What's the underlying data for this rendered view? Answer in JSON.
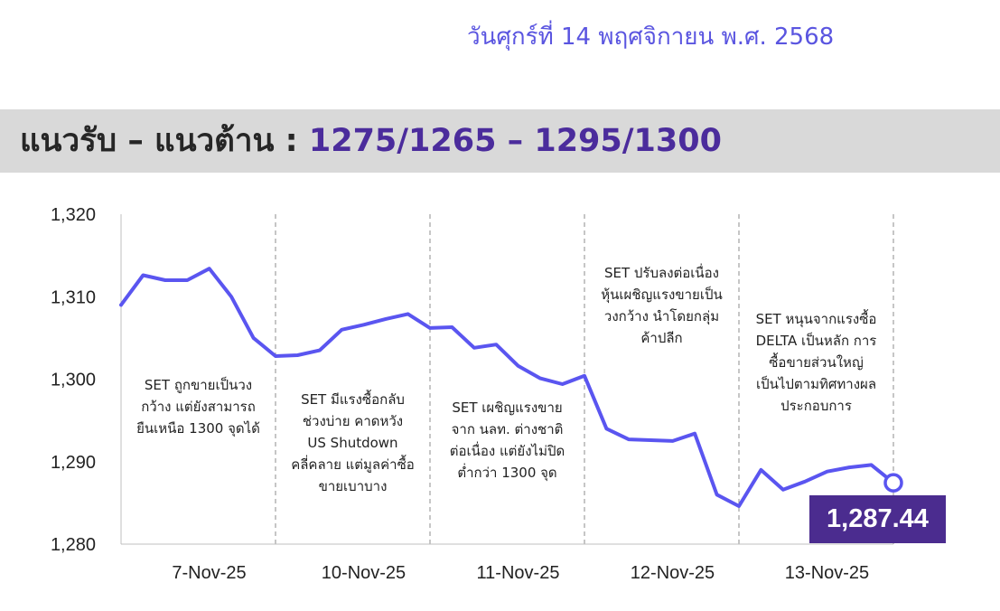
{
  "header": {
    "date": "วันศุกร์ที่ 14 พฤศจิกายน พ.ศ. 2568"
  },
  "banner": {
    "label": "แนวรับ – แนวต้าน",
    "separator": " : ",
    "levels": "1275/1265 – 1295/1300"
  },
  "last_value_label": "1,287.44",
  "colors": {
    "line": "#5a55f0",
    "banner_bg": "#d9d9d9",
    "levels_text": "#4b2c9c",
    "last_box": "#4b2c8f",
    "date_text": "#5a55e0"
  },
  "chart_data": {
    "type": "line",
    "title": "",
    "xlabel": "",
    "ylabel": "",
    "ylim": [
      1280,
      1320
    ],
    "yticks": [
      1280,
      1290,
      1300,
      1310,
      1320
    ],
    "ytick_labels": [
      "1,280",
      "1,290",
      "1,300",
      "1,310",
      "1,320"
    ],
    "days": [
      "7-Nov-25",
      "10-Nov-25",
      "11-Nov-25",
      "12-Nov-25",
      "13-Nov-25"
    ],
    "points_per_day": 7,
    "series": [
      {
        "values": [
          1309.0,
          1312.6,
          1312.0,
          1312.0,
          1313.4,
          1310.0,
          1305.0,
          1302.8,
          1302.9,
          1303.5,
          1306.0,
          1306.6,
          1307.3,
          1307.9,
          1306.2,
          1306.3,
          1303.8,
          1304.2,
          1301.6,
          1300.1,
          1299.4,
          1300.4,
          1294.0,
          1292.7,
          1292.6,
          1292.5,
          1293.4,
          1286.0,
          1284.6,
          1289.0,
          1286.6,
          1287.6,
          1288.8,
          1289.3,
          1289.6,
          1287.44
        ]
      }
    ],
    "annotations": [
      {
        "lines": [
          "SET ถูกขายเป็นวง",
          "กว้าง แต่ยังสามารถ",
          "ยืนเหนือ 1300 จุดได้"
        ]
      },
      {
        "lines": [
          "SET มีแรงซื้อกลับ",
          "ช่วงบ่าย คาดหวัง",
          "US Shutdown",
          "คลี่คลาย แต่มูลค่าซื้อ",
          "ขายเบาบาง"
        ]
      },
      {
        "lines": [
          "SET เผชิญแรงขาย",
          "จาก นลท. ต่างชาติ",
          "ต่อเนื่อง แต่ยังไม่ปิด",
          "ต่ำกว่า 1300 จุด"
        ]
      },
      {
        "lines": [
          "SET ปรับลงต่อเนื่อง",
          "หุ้นเผชิญแรงขายเป็น",
          "วงกว้าง นำโดยกลุ่ม",
          "ค้าปลีก"
        ]
      },
      {
        "lines": [
          "SET หนุนจากแรงซื้อ",
          "DELTA เป็นหลัก การ",
          "ซื้อขายส่วนใหญ่",
          "เป็นไปตามทิศทางผล",
          "ประกอบการ"
        ]
      }
    ],
    "grid": false,
    "day_separators": true,
    "legend": "none"
  }
}
